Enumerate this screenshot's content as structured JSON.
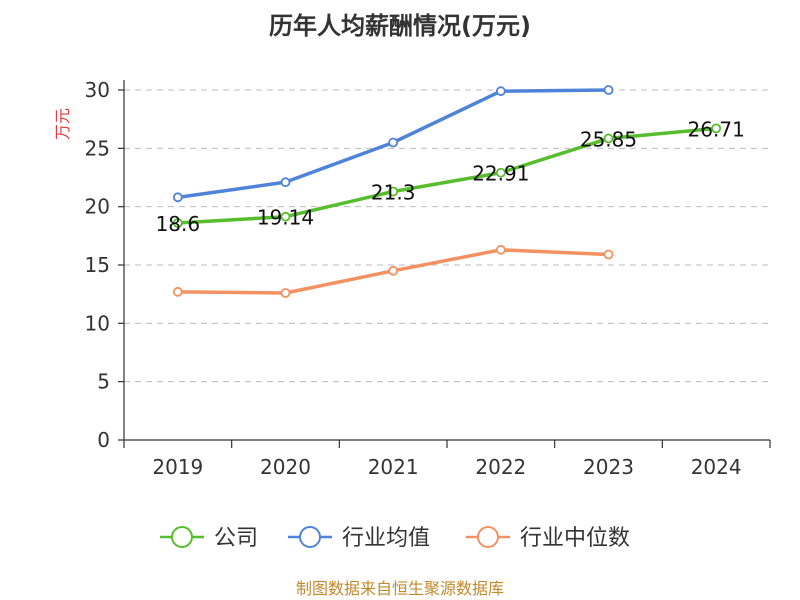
{
  "chart_data": {
    "type": "line",
    "title": "历年人均薪酬情况(万元)",
    "ylabel": "万元",
    "ylim": [
      0,
      30
    ],
    "yticks": [
      0,
      5,
      10,
      15,
      20,
      25,
      30
    ],
    "categories": [
      "2019",
      "2020",
      "2021",
      "2022",
      "2023",
      "2024"
    ],
    "grid": true,
    "legend_position": "bottom",
    "series": [
      {
        "name": "公司",
        "color": "#58bd2c",
        "values": [
          18.6,
          19.14,
          21.3,
          22.91,
          25.85,
          26.71
        ],
        "labels": [
          "18.6",
          "19.14",
          "21.3",
          "22.91",
          "25.85",
          "26.71"
        ]
      },
      {
        "name": "行业均值",
        "color": "#4f83d9",
        "values": [
          20.8,
          22.1,
          25.5,
          29.9,
          30.0,
          null
        ]
      },
      {
        "name": "行业中位数",
        "color": "#f39162",
        "values": [
          12.7,
          12.6,
          14.5,
          16.3,
          15.9,
          null
        ]
      }
    ]
  },
  "ylabel_color": "#e0393e",
  "source": {
    "text": "制图数据来自恒生聚源数据库",
    "color": "#c08a2e"
  }
}
